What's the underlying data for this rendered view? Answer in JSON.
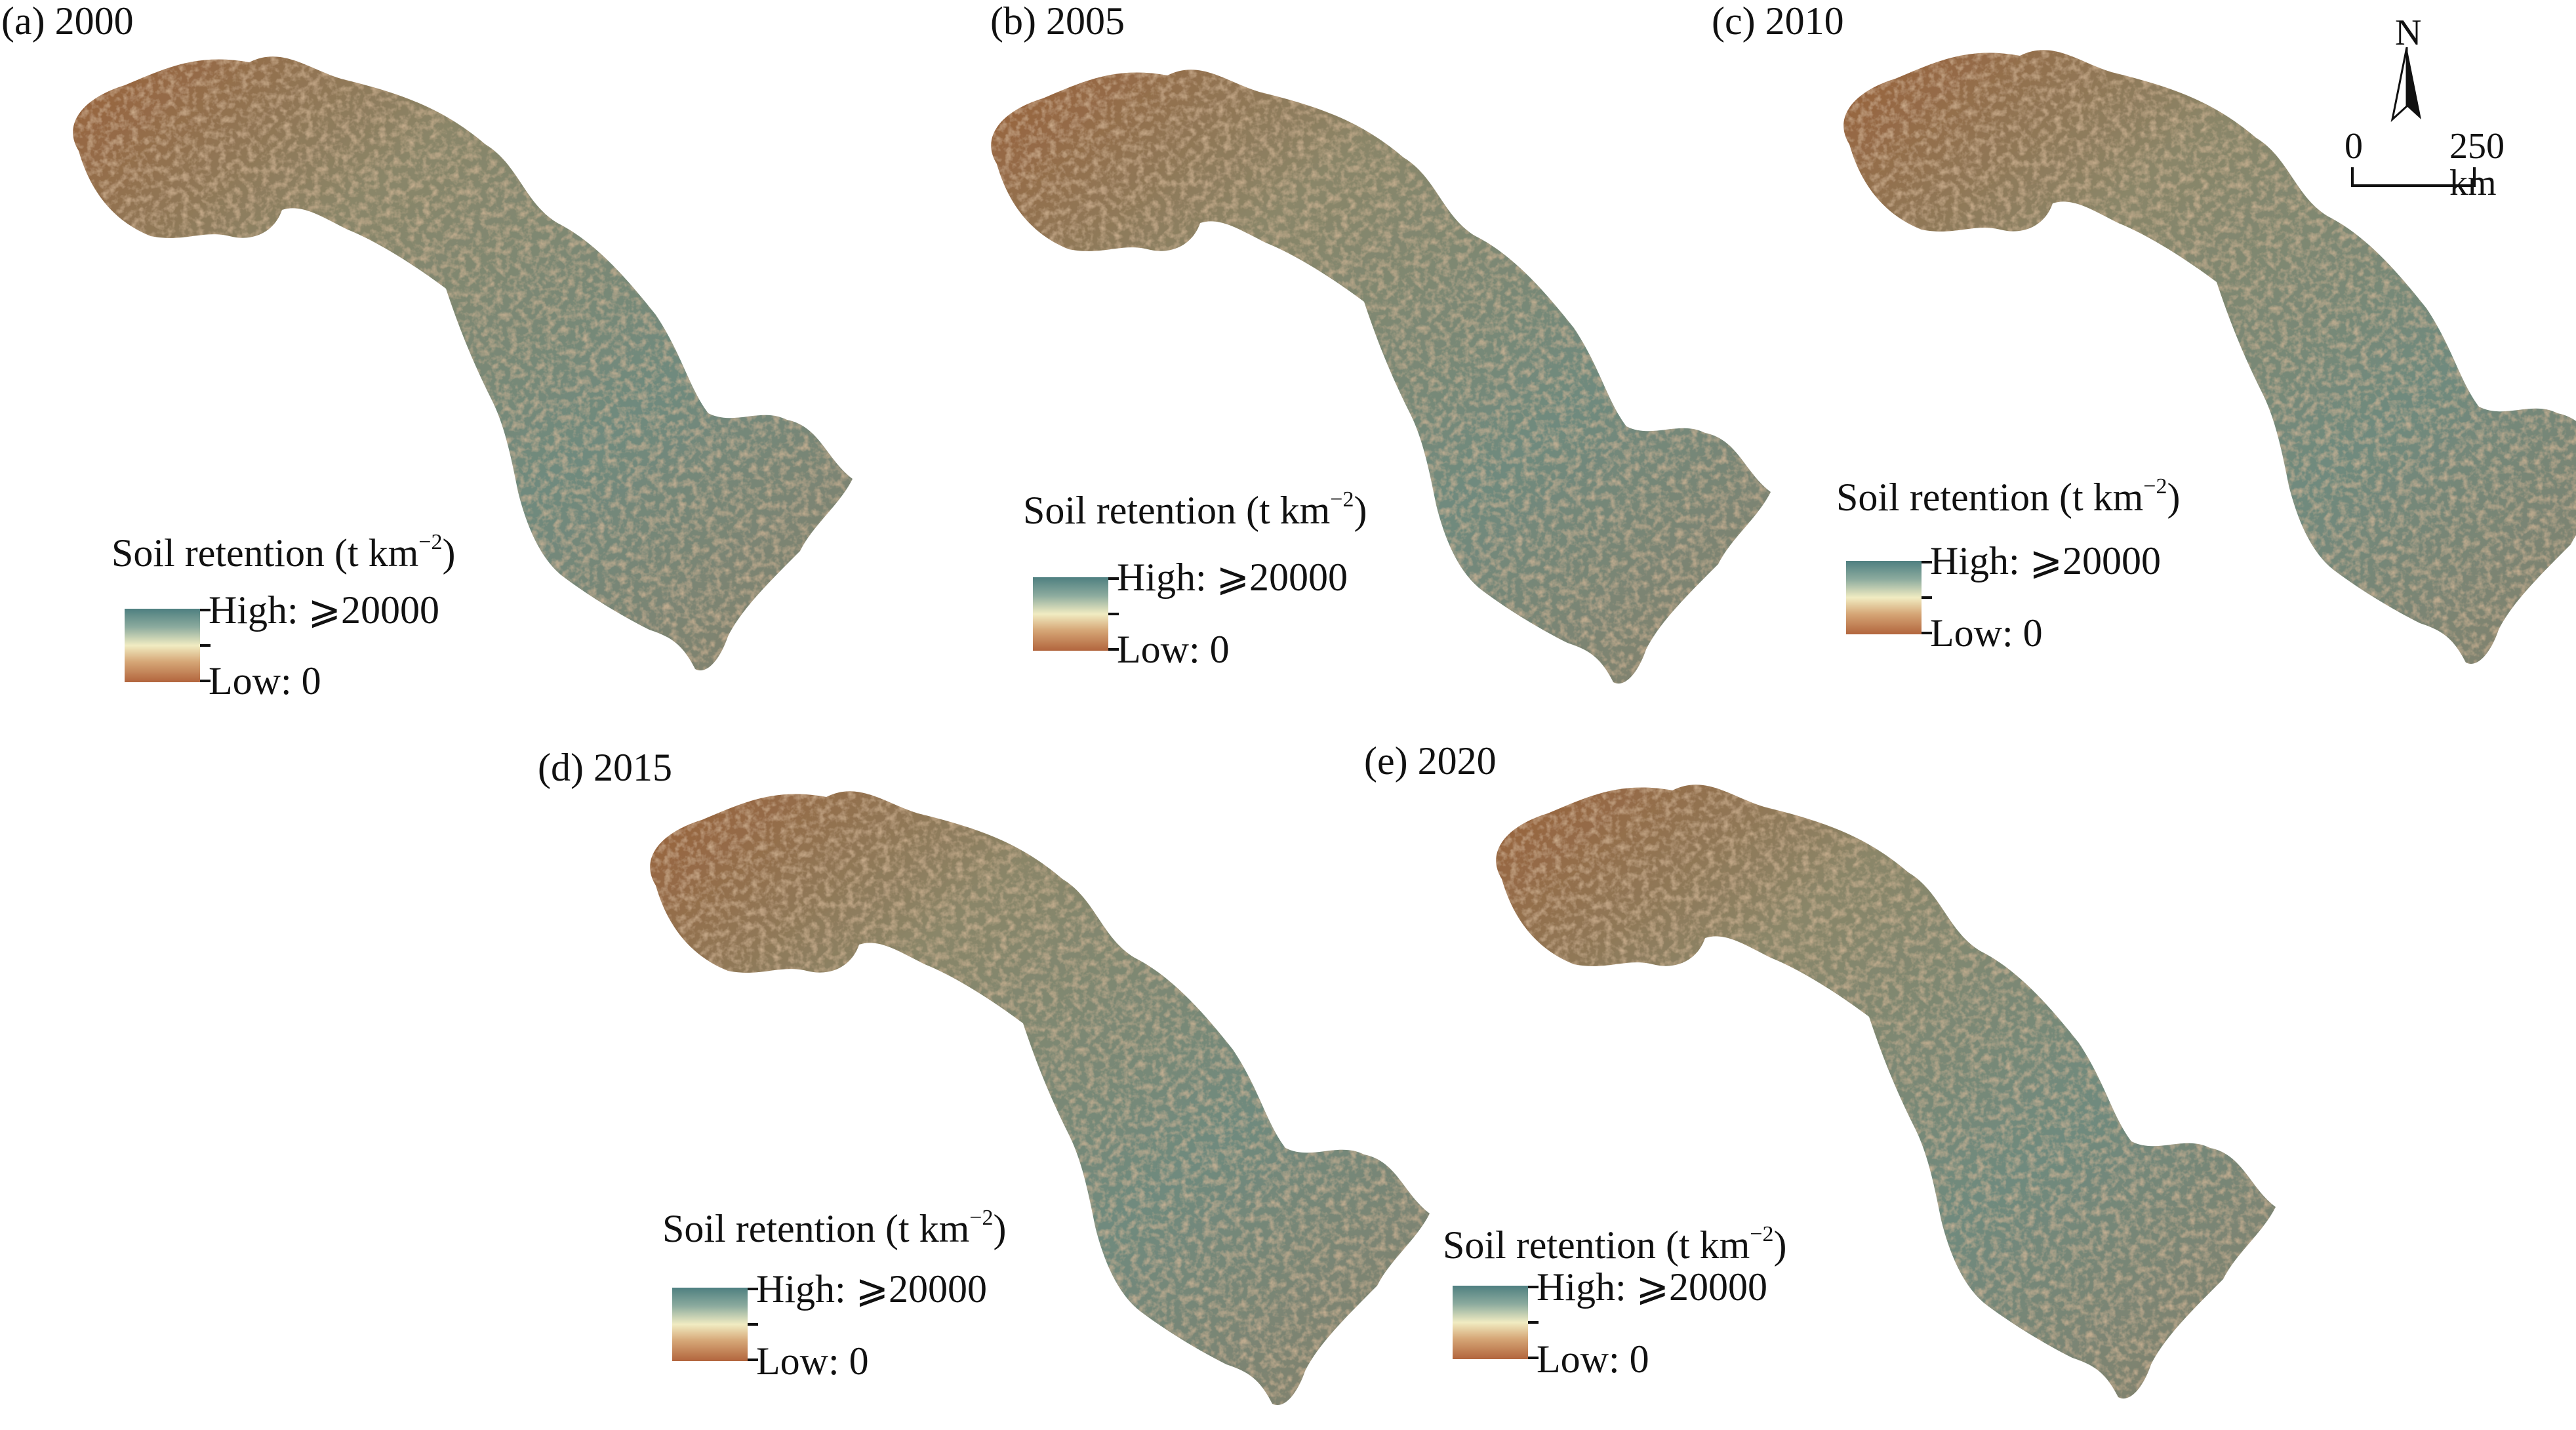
{
  "panels": [
    {
      "label": "(a) 2000",
      "legend_title_prefix": "Soil retention (t km",
      "legend_title_sup": "−2",
      "legend_title_suffix": ")",
      "legend_high": "High: ⩾20000",
      "legend_low": "Low: 0"
    },
    {
      "label": "(b) 2005",
      "legend_title_prefix": "Soil retention (t km",
      "legend_title_sup": "−2",
      "legend_title_suffix": ")",
      "legend_high": "High: ⩾20000",
      "legend_low": "Low: 0"
    },
    {
      "label": "(c) 2010",
      "legend_title_prefix": "Soil retention (t km",
      "legend_title_sup": "−2",
      "legend_title_suffix": ")",
      "legend_high": "High: ⩾20000",
      "legend_low": "Low: 0"
    },
    {
      "label": "(d) 2015",
      "legend_title_prefix": "Soil retention (t km",
      "legend_title_sup": "−2",
      "legend_title_suffix": ")",
      "legend_high": "High: ⩾20000",
      "legend_low": "Low: 0"
    },
    {
      "label": "(e) 2020",
      "legend_title_prefix": "Soil retention (t km",
      "legend_title_sup": "−2",
      "legend_title_suffix": ")",
      "legend_high": "High: ⩾20000",
      "legend_low": "Low: 0"
    }
  ],
  "north_arrow": {
    "label": "N"
  },
  "scale_bar": {
    "start": "0",
    "end": "250 km"
  },
  "colors": {
    "high": "#4e7f80",
    "mid": "#f1ecc2",
    "low": "#b2653d",
    "region_base": "#7c8c78"
  }
}
